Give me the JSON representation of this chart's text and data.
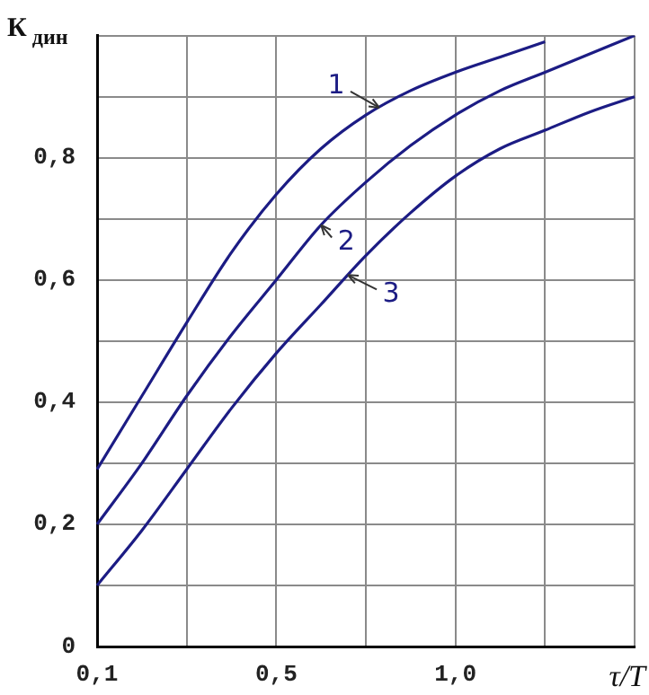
{
  "chart_data": {
    "type": "line",
    "xlabel": "τ/T",
    "ylabel": "К$_{дин}$",
    "categories": [
      "0,1",
      null,
      null,
      null,
      "0,5",
      null,
      null,
      null,
      "1,0",
      null,
      null,
      null,
      null
    ],
    "series": [
      {
        "name": "1",
        "color": "#1c1c84",
        "values": [
          0.29,
          0.41,
          0.53,
          0.645,
          0.74,
          0.815,
          0.87,
          0.91,
          0.94,
          0.965,
          0.99,
          null,
          null
        ]
      },
      {
        "name": "2",
        "color": "#1c1c84",
        "values": [
          0.2,
          0.3,
          0.41,
          0.51,
          0.6,
          0.69,
          0.76,
          0.82,
          0.87,
          0.91,
          0.94,
          0.97,
          1.0
        ]
      },
      {
        "name": "3",
        "color": "#1c1c84",
        "values": [
          0.1,
          0.19,
          0.29,
          0.39,
          0.48,
          0.56,
          0.64,
          0.71,
          0.77,
          0.815,
          0.845,
          0.875,
          0.9
        ]
      }
    ],
    "ylim": [
      0,
      1
    ],
    "yticks": [
      0,
      {
        "value": 0.1,
        "label": null
      },
      {
        "value": 0.2,
        "label": "0,2"
      },
      {
        "value": 0.3,
        "label": null
      },
      {
        "value": 0.4,
        "label": "0,4"
      },
      {
        "value": 0.5,
        "label": null
      },
      {
        "value": 0.6,
        "label": "0,6"
      },
      {
        "value": 0.7,
        "label": null
      },
      {
        "value": 0.8,
        "label": "0,8"
      },
      {
        "value": 0.9,
        "label": null
      },
      {
        "value": 1.0,
        "label": null
      }
    ],
    "grid": true,
    "marker": "none",
    "line_style": "solid"
  }
}
